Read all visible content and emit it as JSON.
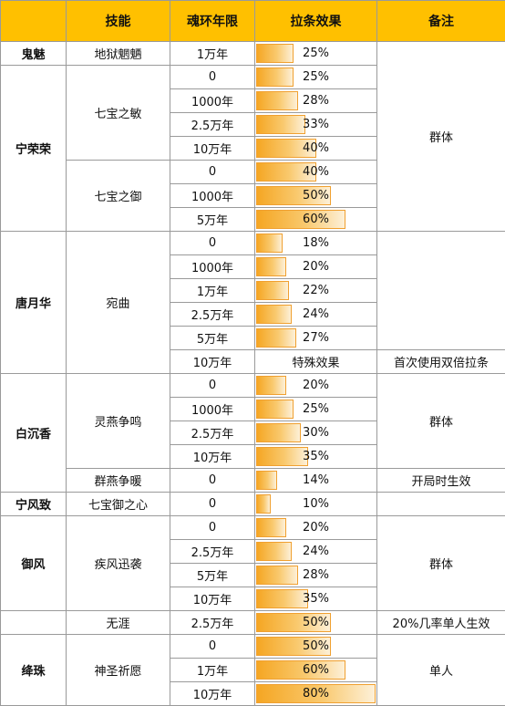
{
  "headers": [
    "",
    "技能",
    "魂环年限",
    "拉条效果",
    "备注"
  ],
  "remarks": {
    "group": "群体",
    "first_use": "首次使用双倍拉条",
    "opening": "开局时生效",
    "chance": "20%几率单人生效",
    "single": "单人"
  },
  "rows": [
    {
      "character": "鬼魅",
      "skill": "地狱魍魉",
      "years": "1万年",
      "effect": "25%",
      "value": 0.25
    },
    {
      "character": "宁荣荣",
      "skill": "七宝之敏",
      "years": "0",
      "effect": "25%",
      "value": 0.25
    },
    {
      "years": "1000年",
      "effect": "28%",
      "value": 0.28
    },
    {
      "years": "2.5万年",
      "effect": "33%",
      "value": 0.33
    },
    {
      "years": "10万年",
      "effect": "40%",
      "value": 0.4
    },
    {
      "skill": "七宝之御",
      "years": "0",
      "effect": "40%",
      "value": 0.4
    },
    {
      "years": "1000年",
      "effect": "50%",
      "value": 0.5
    },
    {
      "years": "5万年",
      "effect": "60%",
      "value": 0.6
    },
    {
      "character": "唐月华",
      "skill": "宛曲",
      "years": "0",
      "effect": "18%",
      "value": 0.18
    },
    {
      "years": "1000年",
      "effect": "20%",
      "value": 0.2
    },
    {
      "years": "1万年",
      "effect": "22%",
      "value": 0.22
    },
    {
      "years": "2.5万年",
      "effect": "24%",
      "value": 0.24
    },
    {
      "years": "5万年",
      "effect": "27%",
      "value": 0.27
    },
    {
      "years": "10万年",
      "effect": "特殊效果"
    },
    {
      "character": "白沉香",
      "skill": "灵燕争鸣",
      "years": "0",
      "effect": "20%",
      "value": 0.2
    },
    {
      "years": "1000年",
      "effect": "25%",
      "value": 0.25
    },
    {
      "years": "2.5万年",
      "effect": "30%",
      "value": 0.3
    },
    {
      "years": "10万年",
      "effect": "35%",
      "value": 0.35
    },
    {
      "skill": "群燕争暖",
      "years": "0",
      "effect": "14%",
      "value": 0.14
    },
    {
      "character": "宁风致",
      "skill": "七宝御之心",
      "years": "0",
      "effect": "10%",
      "value": 0.1
    },
    {
      "character": "御风",
      "skill": "疾风迅袭",
      "years": "0",
      "effect": "20%",
      "value": 0.2
    },
    {
      "years": "2.5万年",
      "effect": "24%",
      "value": 0.24
    },
    {
      "years": "5万年",
      "effect": "28%",
      "value": 0.28
    },
    {
      "years": "10万年",
      "effect": "35%",
      "value": 0.35
    },
    {
      "skill": "无涯",
      "years": "2.5万年",
      "effect": "50%",
      "value": 0.5
    },
    {
      "character": "绛珠",
      "skill": "神圣祈愿",
      "years": "0",
      "effect": "50%",
      "value": 0.5
    },
    {
      "years": "1万年",
      "effect": "60%",
      "value": 0.6
    },
    {
      "years": "10万年",
      "effect": "80%",
      "value": 0.8
    }
  ]
}
